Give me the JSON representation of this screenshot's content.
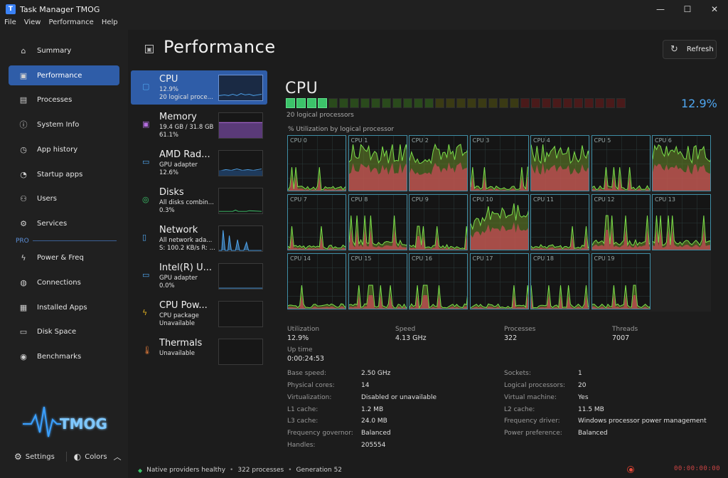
{
  "window": {
    "title": "Task Manager TMOG",
    "min": "—",
    "max": "☐",
    "close": "✕"
  },
  "menu": [
    "File",
    "View",
    "Performance",
    "Help"
  ],
  "sidebar": {
    "items": [
      {
        "label": "Summary",
        "icon": "home-icon",
        "glyph": "⌂"
      },
      {
        "label": "Performance",
        "icon": "chart-icon",
        "glyph": "▣"
      },
      {
        "label": "Processes",
        "icon": "processes-icon",
        "glyph": "▤"
      },
      {
        "label": "System Info",
        "icon": "info-icon",
        "glyph": "ⓘ"
      },
      {
        "label": "App history",
        "icon": "history-icon",
        "glyph": "◷"
      },
      {
        "label": "Startup apps",
        "icon": "startup-icon",
        "glyph": "◔"
      },
      {
        "label": "Users",
        "icon": "users-icon",
        "glyph": "⚇"
      },
      {
        "label": "Services",
        "icon": "wrench-icon",
        "glyph": "⚙"
      }
    ],
    "pro_label": "PRO",
    "pro_items": [
      {
        "label": "Power & Freq",
        "icon": "lightning-icon",
        "glyph": "ϟ"
      },
      {
        "label": "Connections",
        "icon": "globe-icon",
        "glyph": "◍"
      },
      {
        "label": "Installed Apps",
        "icon": "apps-icon",
        "glyph": "▦"
      },
      {
        "label": "Disk Space",
        "icon": "disk-icon",
        "glyph": "▭"
      },
      {
        "label": "Benchmarks",
        "icon": "gauge-icon",
        "glyph": "◉"
      }
    ],
    "settings_label": "Settings",
    "colors_label": "Colors",
    "logo_text": "TMOG"
  },
  "main": {
    "title": "Performance",
    "refresh_label": "Refresh"
  },
  "devices": [
    {
      "name": "CPU",
      "line1": "12.9%",
      "line2": "20 logical proce...",
      "icon": "cpu-icon",
      "glyph": "▢",
      "color": "#4fa6f0"
    },
    {
      "name": "Memory",
      "line1": "19.4 GB / 31.8 GB",
      "line2": "61.1%",
      "icon": "memory-icon",
      "glyph": "▣",
      "color": "#b46ee0"
    },
    {
      "name": "AMD Rad...",
      "line1": "GPU adapter",
      "line2": "12.6%",
      "icon": "monitor-icon",
      "glyph": "▭",
      "color": "#4fa6f0"
    },
    {
      "name": "Disks",
      "line1": "All disks combin...",
      "line2": "0.3%",
      "icon": "disk-icon",
      "glyph": "◎",
      "color": "#3cc36a"
    },
    {
      "name": "Network",
      "line1": "All network ada...",
      "line2": "S: 100.2 KB/s  R: ...",
      "icon": "phone-icon",
      "glyph": "▯",
      "color": "#4fa6f0"
    },
    {
      "name": "Intel(R) U...",
      "line1": "GPU adapter",
      "line2": "0.0%",
      "icon": "monitor-icon",
      "glyph": "▭",
      "color": "#4fa6f0"
    },
    {
      "name": "CPU Pow...",
      "line1": "CPU package",
      "line2": "Unavailable",
      "icon": "lightning-icon",
      "glyph": "ϟ",
      "color": "#e0b020"
    },
    {
      "name": "Thermals",
      "line1": "Unavailable",
      "line2": "",
      "icon": "thermometer-icon",
      "glyph": "🌡",
      "color": "#e07a3a"
    }
  ],
  "cpu": {
    "title": "CPU",
    "logical_text": "20 logical processors",
    "util_label": "% Utilization by logical processor",
    "pct": "12.9%",
    "cores": [
      "CPU 0",
      "CPU 1",
      "CPU 2",
      "CPU 3",
      "CPU 4",
      "CPU 5",
      "CPU 6",
      "CPU 7",
      "CPU 8",
      "CPU 9",
      "CPU 10",
      "CPU 11",
      "CPU 12",
      "CPU 13",
      "CPU 14",
      "CPU 15",
      "CPU 16",
      "CPU 17",
      "CPU 18",
      "CPU 19"
    ]
  },
  "stats": {
    "utilization_k": "Utilization",
    "utilization_v": "12.9%",
    "speed_k": "Speed",
    "speed_v": "4.13 GHz",
    "processes_k": "Processes",
    "processes_v": "322",
    "threads_k": "Threads",
    "threads_v": "7007",
    "uptime_k": "Up time",
    "uptime_v": "0:00:24:53",
    "base_speed_k": "Base speed:",
    "base_speed_v": "2.50 GHz",
    "physical_k": "Physical cores:",
    "physical_v": "14",
    "virt_k": "Virtualization:",
    "virt_v": "Disabled or unavailable",
    "l1_k": "L1 cache:",
    "l1_v": "1.2 MB",
    "l3_k": "L3 cache:",
    "l3_v": "24.0 MB",
    "gov_k": "Frequency governor:",
    "gov_v": "Balanced",
    "handles_k": "Handles:",
    "handles_v": "205554",
    "sockets_k": "Sockets:",
    "sockets_v": "1",
    "logical_k": "Logical processors:",
    "logical_v": "20",
    "vm_k": "Virtual machine:",
    "vm_v": "Yes",
    "l2_k": "L2 cache:",
    "l2_v": "11.5 MB",
    "driver_k": "Frequency driver:",
    "driver_v": "Windows processor power management",
    "pref_k": "Power preference:",
    "pref_v": "Balanced"
  },
  "status": {
    "providers": "Native providers healthy",
    "processes": "322 processes",
    "generation": "Generation 52",
    "clock": "00:00:00:00"
  }
}
